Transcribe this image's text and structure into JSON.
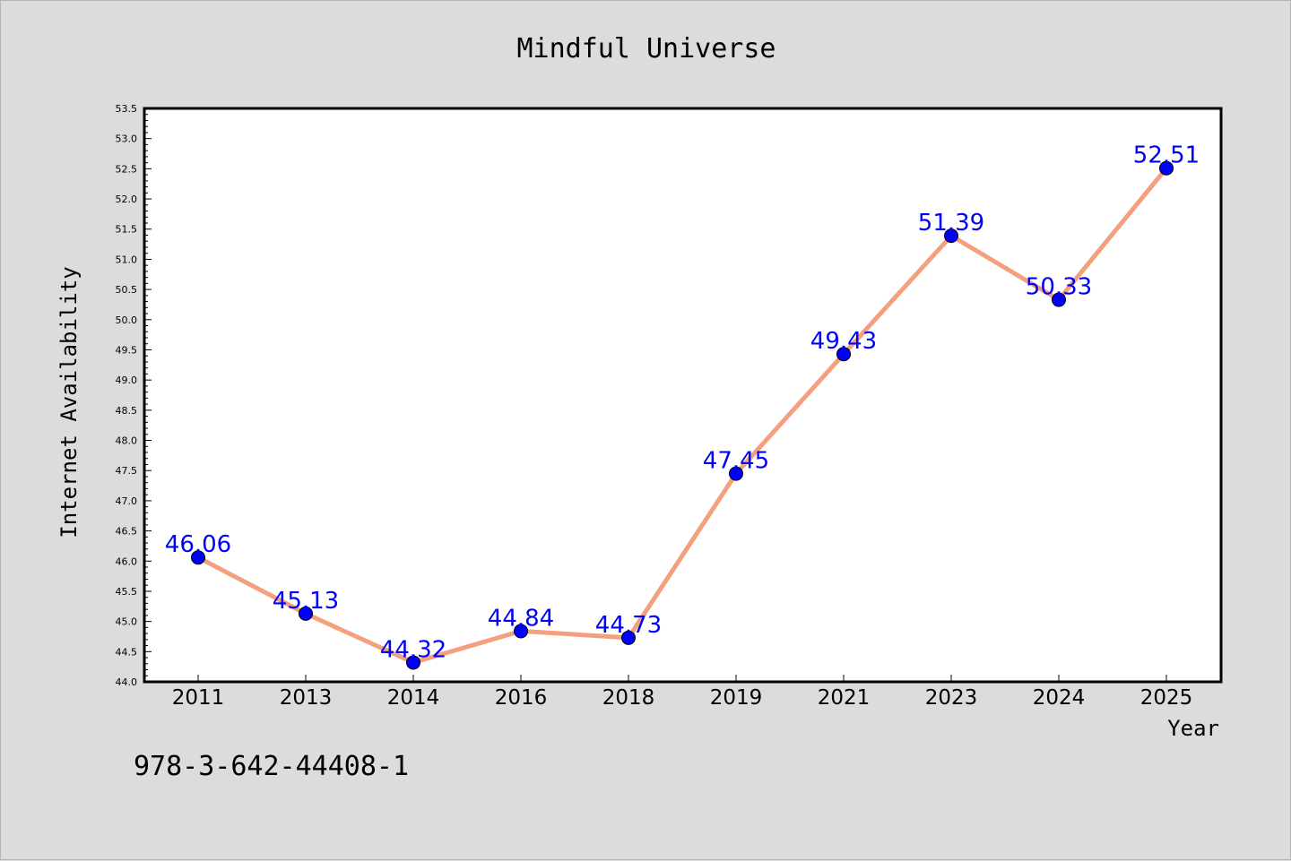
{
  "chart_data": {
    "type": "line",
    "title": "Mindful Universe",
    "xlabel": "Year",
    "ylabel": "Internet Availability",
    "categories": [
      "2011",
      "2013",
      "2014",
      "2016",
      "2018",
      "2019",
      "2021",
      "2023",
      "2024",
      "2025"
    ],
    "series": [
      {
        "values": [
          46.06,
          45.13,
          44.32,
          44.84,
          44.73,
          47.45,
          49.43,
          51.39,
          50.33,
          52.51
        ],
        "labels": [
          "46.06",
          "45.13",
          "44.32",
          "44.84",
          "44.73",
          "47.45",
          "49.43",
          "51.39",
          "50.33",
          "52.51"
        ]
      }
    ],
    "ylim": [
      44.0,
      53.5
    ],
    "yticks": [
      "44.0",
      "44.5",
      "45.0",
      "45.5",
      "46.0",
      "46.5",
      "47.0",
      "47.5",
      "48.0",
      "48.5",
      "49.0",
      "49.5",
      "50.0",
      "50.5",
      "51.0",
      "51.5",
      "52.0",
      "52.5",
      "53.0",
      "53.5"
    ],
    "grid": false,
    "line_color": "#f4a07e",
    "marker_color": "#0000ff",
    "label_color": "#0000ff"
  },
  "footer_code": "978-3-642-44408-1"
}
